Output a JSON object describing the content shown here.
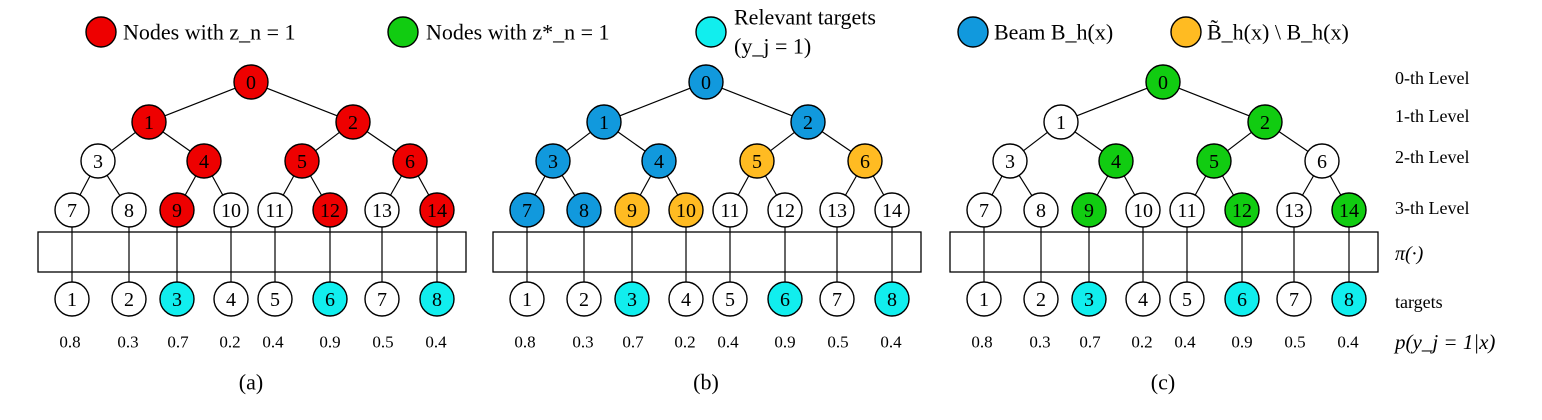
{
  "colors": {
    "red": "#ee0000",
    "green": "#11cc11",
    "cyan": "#11eeee",
    "blue": "#1199dd",
    "orange": "#ffbb22",
    "white": "#ffffff"
  },
  "legend": [
    {
      "key": "nodes-zn",
      "color": "red",
      "text": "Nodes with z_n = 1"
    },
    {
      "key": "nodes-zn-star",
      "color": "green",
      "text": "Nodes with z*_n = 1"
    },
    {
      "key": "relevant-targets",
      "color": "cyan",
      "text": "Relevant targets",
      "text2": "(y_j = 1)"
    },
    {
      "key": "beam",
      "color": "blue",
      "text": "Beam B_h(x)"
    },
    {
      "key": "beam-diff",
      "color": "orange",
      "text": "B̃_h(x) \\ B_h(x)"
    }
  ],
  "level_labels": [
    "0-th Level",
    "1-th Level",
    "2-th Level",
    "3-th Level",
    "π(·)",
    "targets",
    "p(y_j = 1|x)"
  ],
  "tree_nodes": [
    "0",
    "1",
    "2",
    "3",
    "4",
    "5",
    "6",
    "7",
    "8",
    "9",
    "10",
    "11",
    "12",
    "13",
    "14"
  ],
  "targets": [
    "1",
    "2",
    "3",
    "4",
    "5",
    "6",
    "7",
    "8"
  ],
  "probabilities": [
    "0.8",
    "0.3",
    "0.7",
    "0.2",
    "0.4",
    "0.9",
    "0.5",
    "0.4"
  ],
  "target_colors": [
    "white",
    "white",
    "cyan",
    "white",
    "white",
    "cyan",
    "white",
    "cyan"
  ],
  "panels": [
    {
      "caption": "(a)",
      "node_colors": [
        "red",
        "red",
        "red",
        "white",
        "red",
        "red",
        "red",
        "white",
        "white",
        "red",
        "white",
        "white",
        "red",
        "white",
        "red"
      ]
    },
    {
      "caption": "(b)",
      "node_colors": [
        "blue",
        "blue",
        "blue",
        "blue",
        "blue",
        "orange",
        "orange",
        "blue",
        "blue",
        "orange",
        "orange",
        "white",
        "white",
        "white",
        "white"
      ]
    },
    {
      "caption": "(c)",
      "node_colors": [
        "green",
        "white",
        "green",
        "white",
        "green",
        "green",
        "white",
        "white",
        "white",
        "green",
        "white",
        "white",
        "green",
        "white",
        "green"
      ]
    }
  ]
}
